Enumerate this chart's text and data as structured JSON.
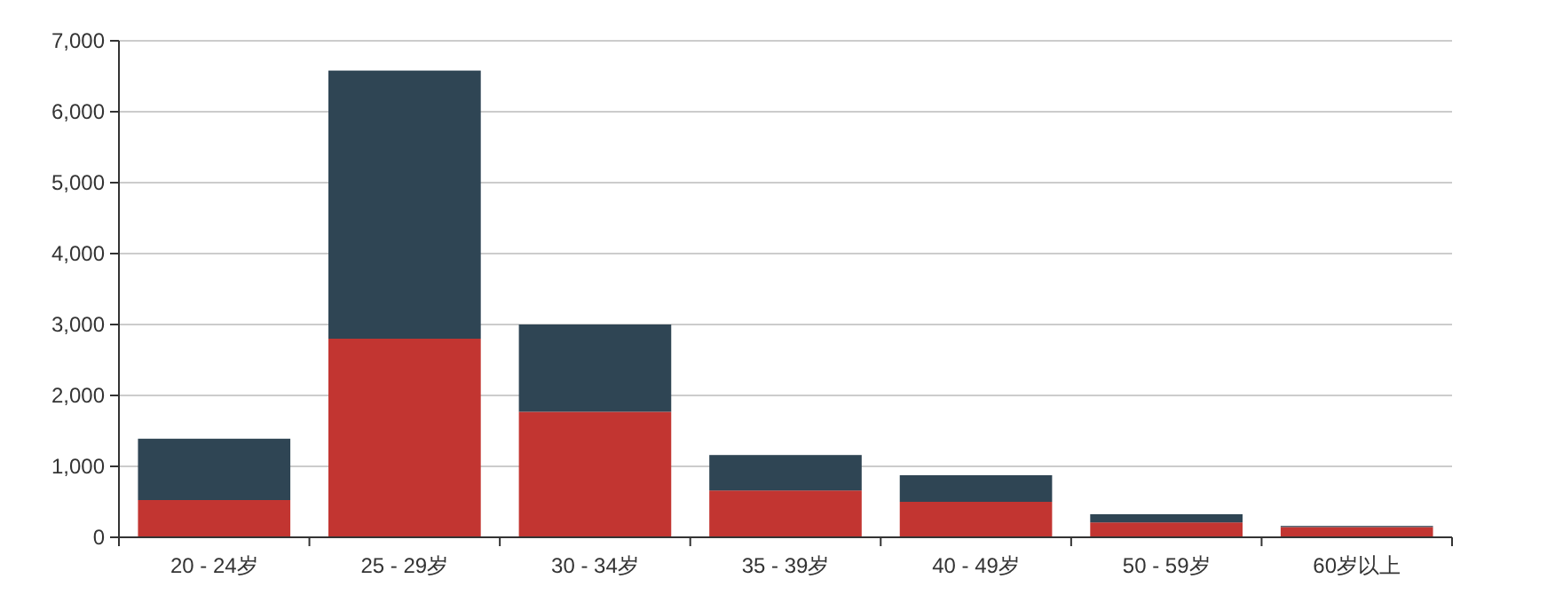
{
  "chart_data": {
    "type": "bar",
    "stacked": true,
    "categories": [
      "20 - 24岁",
      "25 - 29岁",
      "30 - 34岁",
      "35 - 39岁",
      "40 - 49岁",
      "50 - 59岁",
      "60岁以上"
    ],
    "series": [
      {
        "color": "#c23531",
        "values": [
          525,
          2800,
          1770,
          660,
          500,
          210,
          145
        ]
      },
      {
        "color": "#2f4554",
        "values": [
          865,
          3780,
          1230,
          500,
          375,
          115,
          15
        ]
      }
    ],
    "ylim": [
      0,
      7000
    ],
    "yticks": [
      {
        "value": 0,
        "label": "0"
      },
      {
        "value": 1000,
        "label": "1,000"
      },
      {
        "value": 2000,
        "label": "2,000"
      },
      {
        "value": 3000,
        "label": "3,000"
      },
      {
        "value": 4000,
        "label": "4,000"
      },
      {
        "value": 5000,
        "label": "5,000"
      },
      {
        "value": 6000,
        "label": "6,000"
      },
      {
        "value": 7000,
        "label": "7,000"
      }
    ],
    "grid": "y"
  }
}
